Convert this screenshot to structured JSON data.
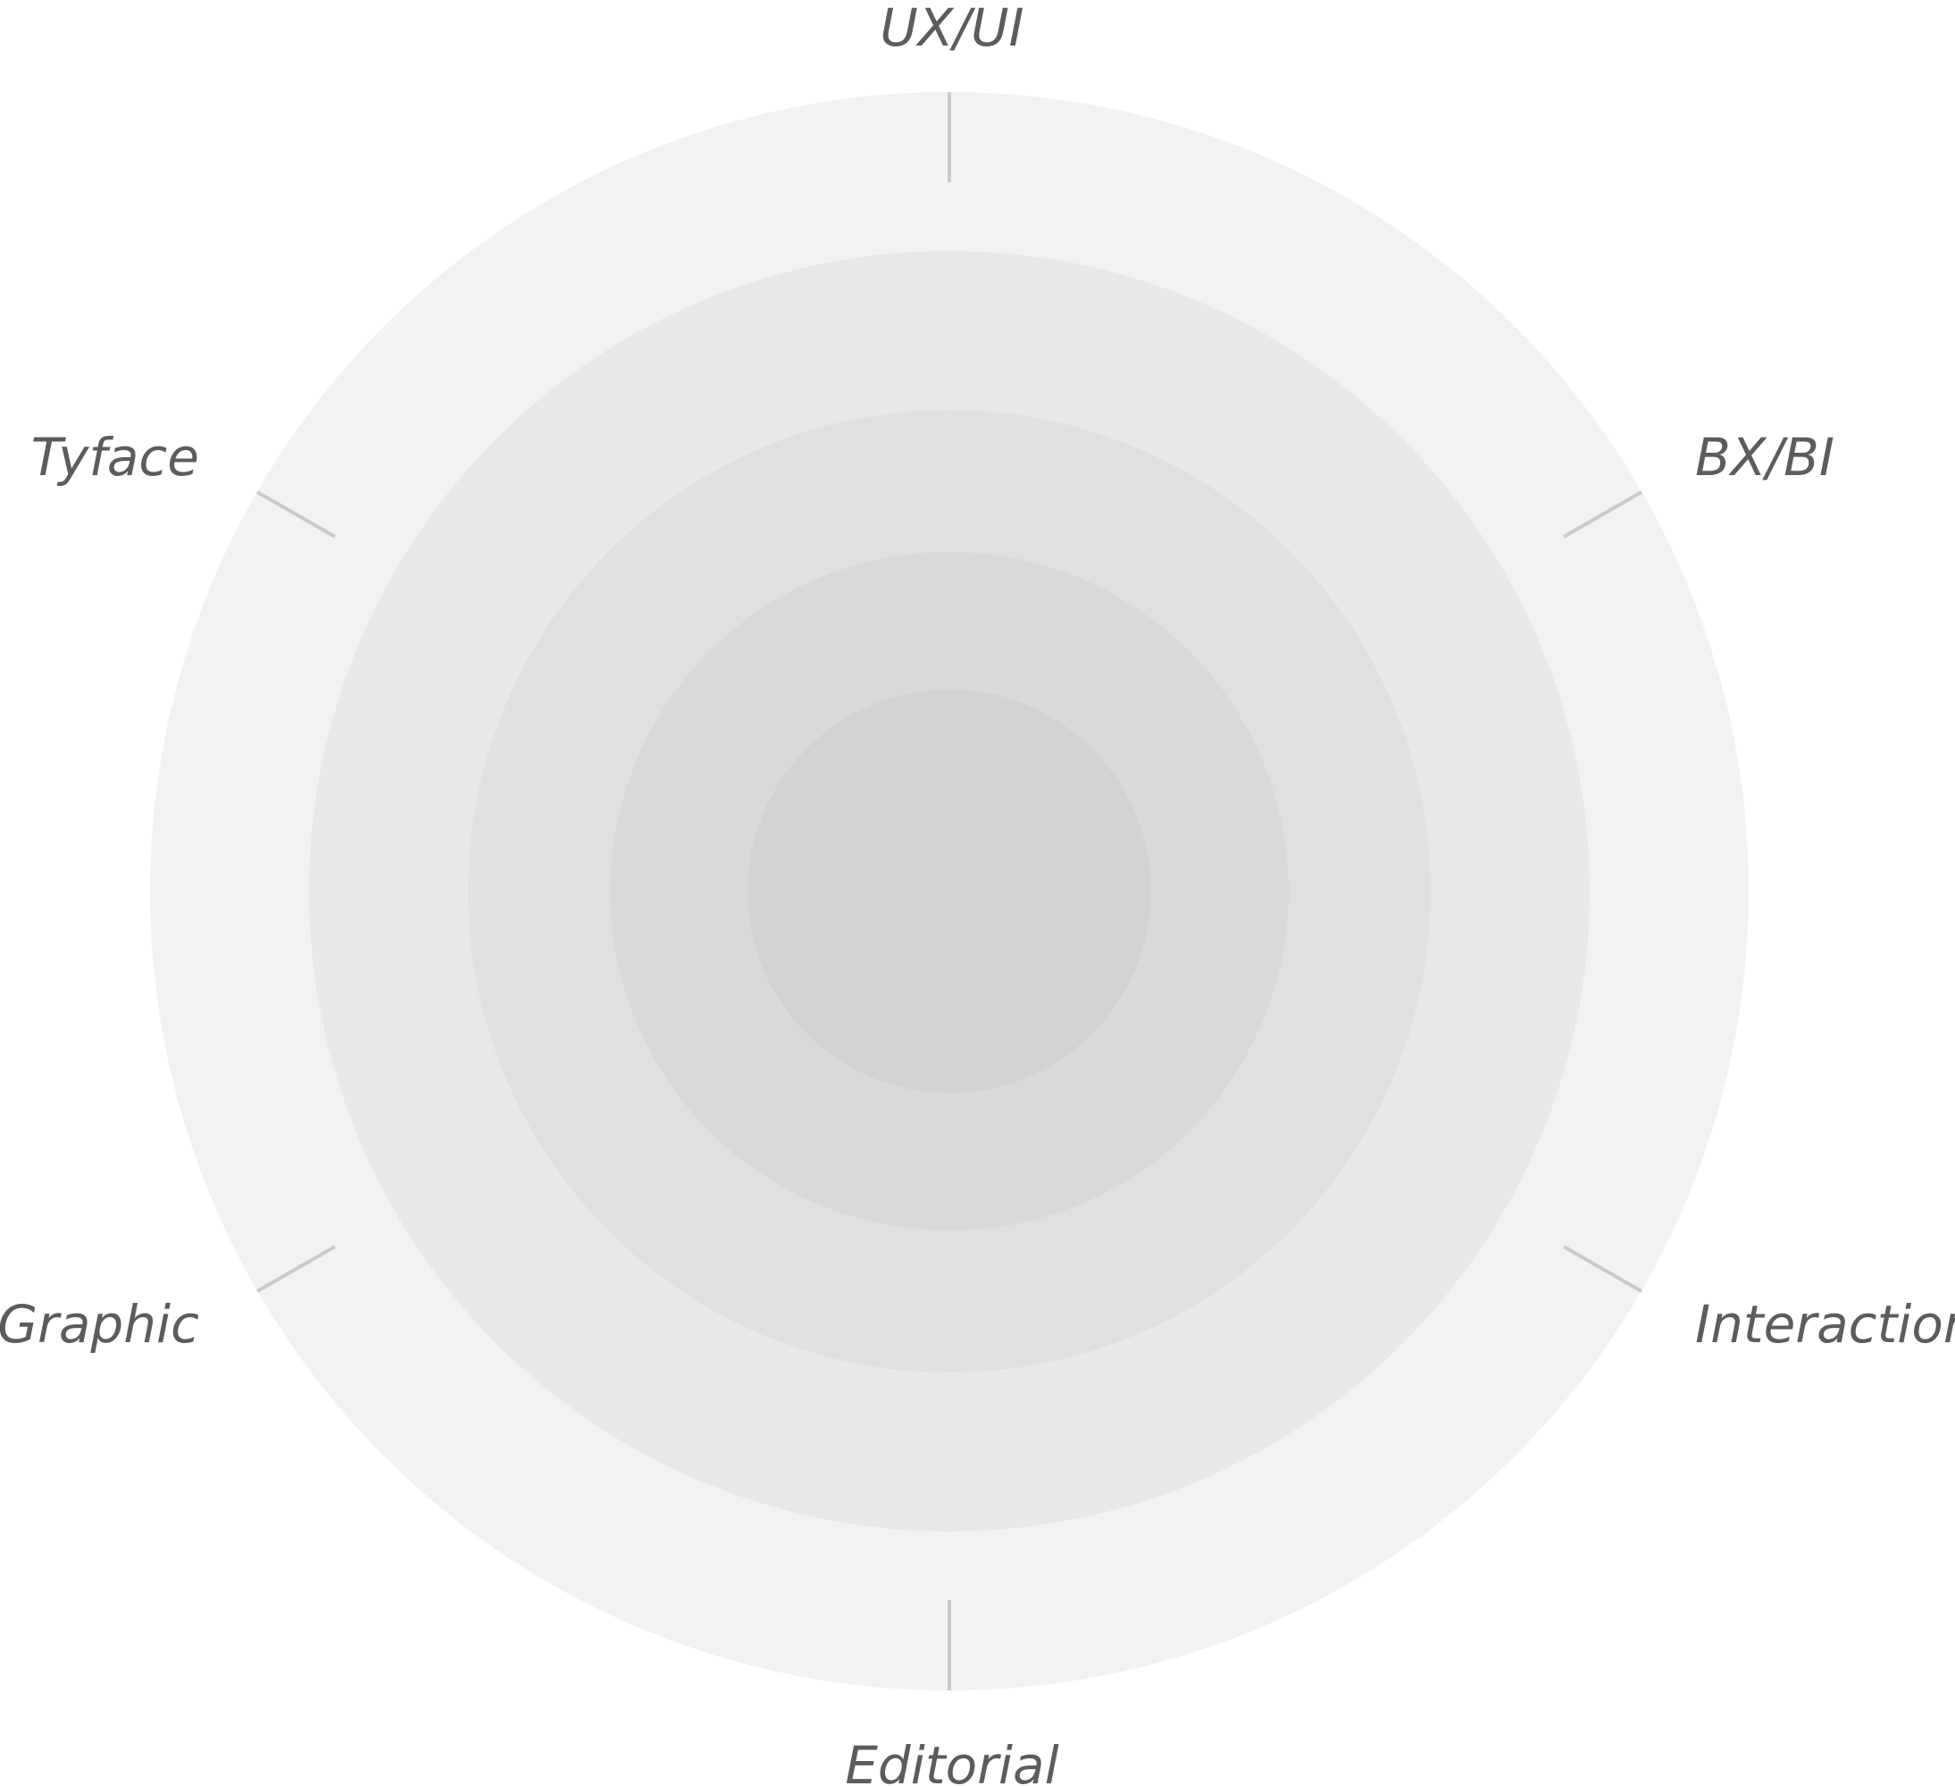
{
  "diagram": {
    "axes": [
      {
        "label": "UX/UI"
      },
      {
        "label": "BX/BI"
      },
      {
        "label": "Interaction"
      },
      {
        "label": "Editorial"
      },
      {
        "label": "Graphic"
      },
      {
        "label": "Tyface"
      }
    ],
    "ring_colors": [
      "#f2f2f2",
      "#e8e8e8",
      "#e0e0e0",
      "#d9d9d9",
      "#d2d2d2"
    ],
    "tick_color": "#cacaca",
    "label_color": "#5c5c5c"
  }
}
